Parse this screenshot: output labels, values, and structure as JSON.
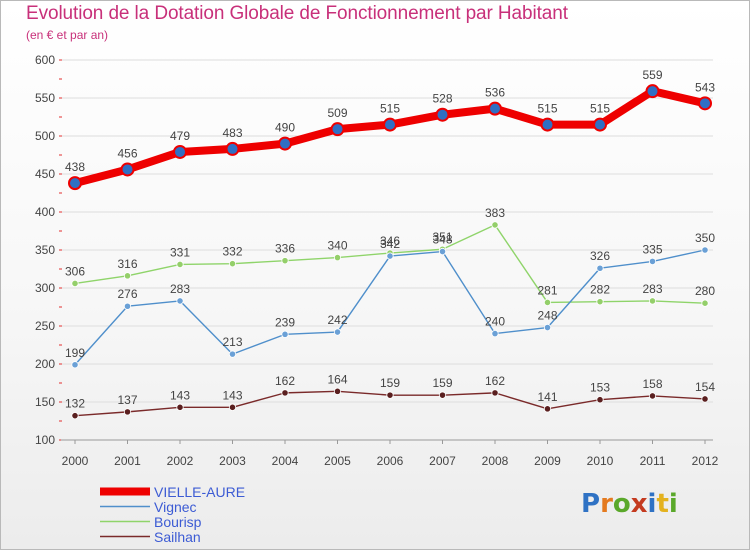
{
  "colors": {
    "title": "#c8307a",
    "axis_text": "#444444",
    "grid": "#dddddd",
    "label": "#3c5bd4"
  },
  "logo": {
    "letters": [
      "P",
      "r",
      "o",
      "x",
      "i",
      "t",
      "i"
    ],
    "letter_colors": [
      "#2f72c4",
      "#e47a1f",
      "#5aa82a",
      "#c43a1f",
      "#2f72c4",
      "#e4b21f",
      "#5aa82a"
    ]
  },
  "chart_data": {
    "type": "line",
    "title": "Evolution de la Dotation Globale de Fonctionnement par Habitant",
    "subtitle": "(en € et par an)",
    "xlabel": "",
    "ylabel": "",
    "ylim": [
      100,
      600
    ],
    "yticks": [
      100,
      150,
      200,
      250,
      300,
      350,
      400,
      450,
      500,
      550,
      600
    ],
    "grid": true,
    "legend_position": "bottom-left",
    "categories": [
      "2000",
      "2001",
      "2002",
      "2003",
      "2004",
      "2005",
      "2006",
      "2007",
      "2008",
      "2009",
      "2010",
      "2011",
      "2012"
    ],
    "series": [
      {
        "name": "VIELLE-AURE",
        "color": "#ee0000",
        "marker": "#2f6fc4",
        "width": "thick",
        "values": [
          438,
          456,
          479,
          483,
          490,
          509,
          515,
          528,
          536,
          515,
          515,
          559,
          543
        ]
      },
      {
        "name": "Vignec",
        "color": "#4f8fcb",
        "marker": "#6aa0d6",
        "width": "thin",
        "values": [
          199,
          276,
          283,
          213,
          239,
          242,
          342,
          348,
          240,
          248,
          326,
          335,
          350
        ]
      },
      {
        "name": "Bourisp",
        "color": "#8fd46a",
        "marker": "#94cf6a",
        "width": "thin",
        "values": [
          306,
          316,
          331,
          332,
          336,
          340,
          346,
          351,
          383,
          281,
          282,
          283,
          280
        ]
      },
      {
        "name": "Sailhan",
        "color": "#7a2a2a",
        "marker": "#5a1f1f",
        "width": "thin",
        "values": [
          132,
          137,
          143,
          143,
          162,
          164,
          159,
          159,
          162,
          141,
          153,
          158,
          154
        ]
      }
    ]
  }
}
